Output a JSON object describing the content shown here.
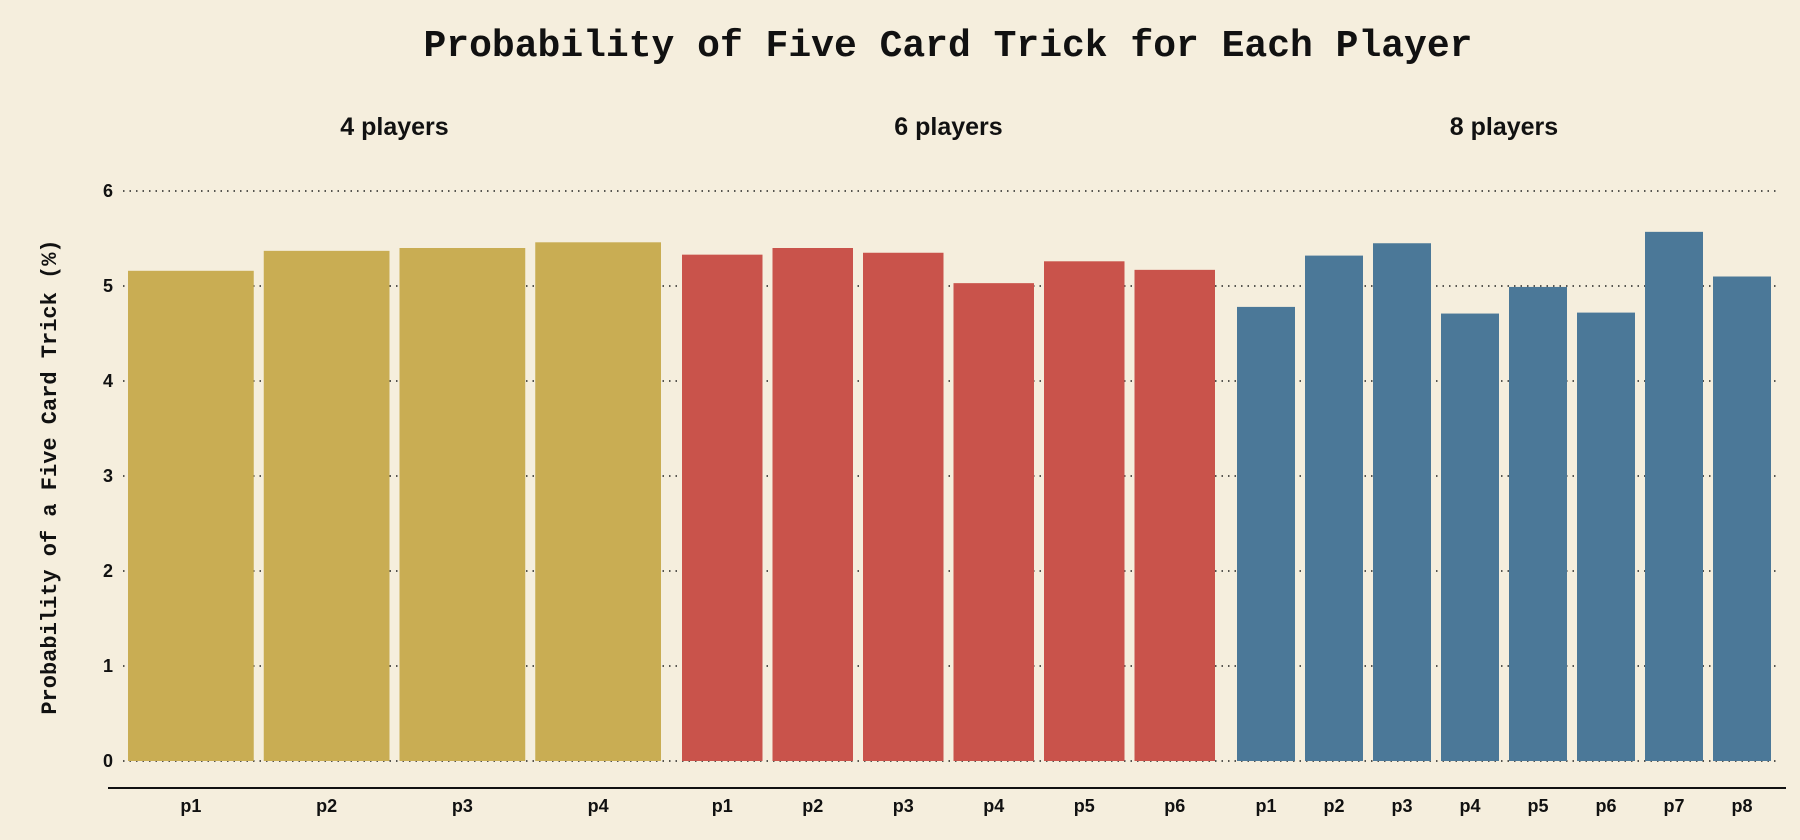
{
  "chart_data": {
    "type": "bar",
    "title": "Probability of Five Card Trick for Each Player",
    "ylabel": "Probability of a Five Card Trick (%)",
    "ylim": [
      0,
      6
    ],
    "yticks": [
      "0",
      "1",
      "2",
      "3",
      "4",
      "5",
      "6"
    ],
    "grid": "horizontal dotted",
    "panels": [
      {
        "title": "4 players",
        "color": "#c9ad53",
        "categories": [
          "p1",
          "p2",
          "p3",
          "p4"
        ],
        "values": [
          5.16,
          5.37,
          5.4,
          5.46
        ]
      },
      {
        "title": "6 players",
        "color": "#c9534b",
        "categories": [
          "p1",
          "p2",
          "p3",
          "p4",
          "p5",
          "p6"
        ],
        "values": [
          5.33,
          5.4,
          5.35,
          5.03,
          5.26,
          5.17
        ]
      },
      {
        "title": "8 players",
        "color": "#4b7898",
        "categories": [
          "p1",
          "p2",
          "p3",
          "p4",
          "p5",
          "p6",
          "p7",
          "p8"
        ],
        "values": [
          4.78,
          5.32,
          5.45,
          4.71,
          4.99,
          4.72,
          5.57,
          5.1
        ]
      }
    ]
  }
}
